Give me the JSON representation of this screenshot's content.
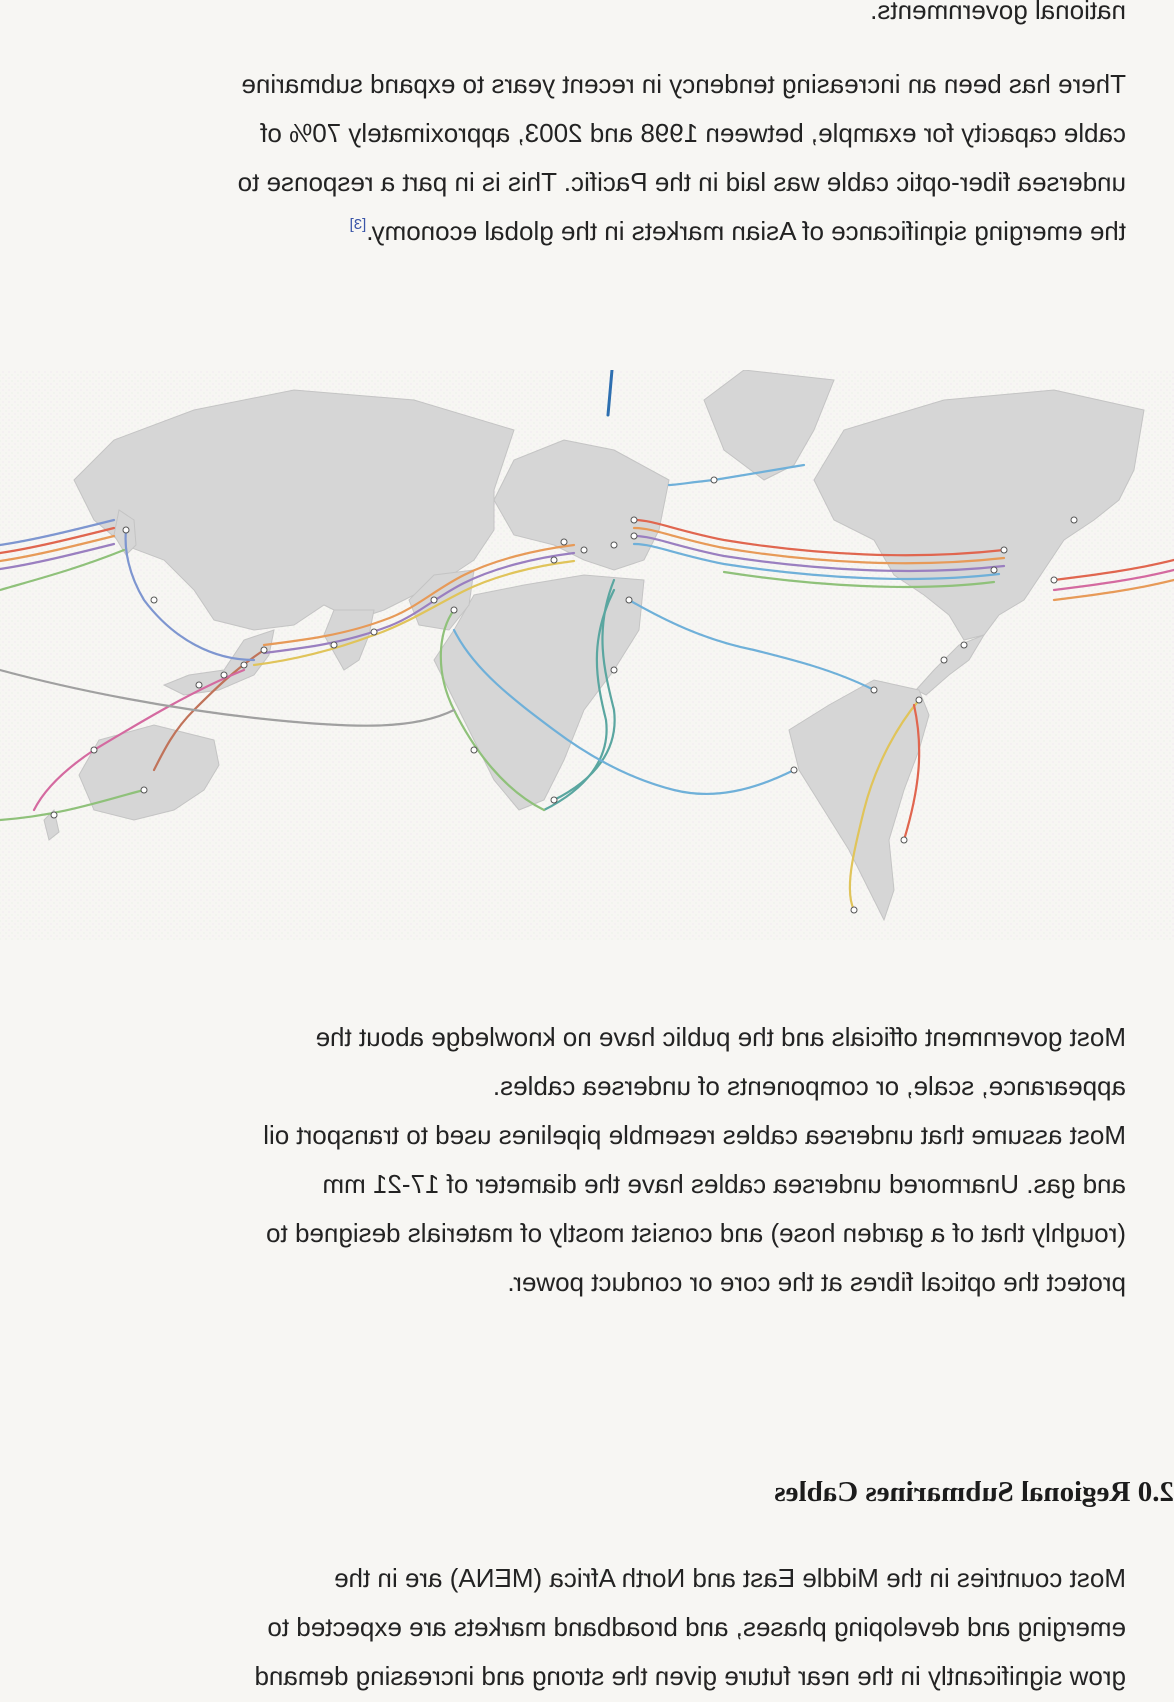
{
  "intro_tail": "national governments.",
  "paragraph_expansion": {
    "lines": [
      "There has been an increasing tendency in recent years to expand submarine",
      "cable capacity for example, between 1998 and 2003, approximately 70% of",
      "undersea fiber-optic cable was laid in the Pacific. This is in part a response to",
      "the emerging significance of Asian markets in the global economy."
    ],
    "citation": "[3]"
  },
  "figure": {
    "subject": "world map of submarine cables"
  },
  "paragraph_perception": {
    "lines": [
      "Most government officials and the public have no knowledge about the",
      "appearance, scale, or components of undersea cables.",
      "Most assume that undersea cables resemble pipelines used to transport oil",
      "and gas. Unarmored undersea cables have the diameter of 17-21 mm",
      "(roughly that of a garden hose) and consist mostly of materials designed to",
      "protect the optical fibres at the core or conduct power."
    ]
  },
  "section_heading": "2.0 Regional Submarines Cables",
  "paragraph_mena": {
    "lines": [
      "Most countries in the Middle East and North Africa (MENA) are in the",
      "emerging and developing phases, and broadband markets are expected to",
      "grow significantly in the near future given the strong and increasing demand"
    ]
  },
  "colors": {
    "background": "#f7f6f3",
    "land": "#d6d6d6",
    "text": "#232323",
    "citation": "#3a55a8",
    "cable_palette": [
      "#e0664f",
      "#e79a58",
      "#9a7fc0",
      "#6fb0d9",
      "#8fc17a",
      "#e0c45a",
      "#d46aa0",
      "#5aa6a0",
      "#c0735a",
      "#7e96d0"
    ]
  }
}
